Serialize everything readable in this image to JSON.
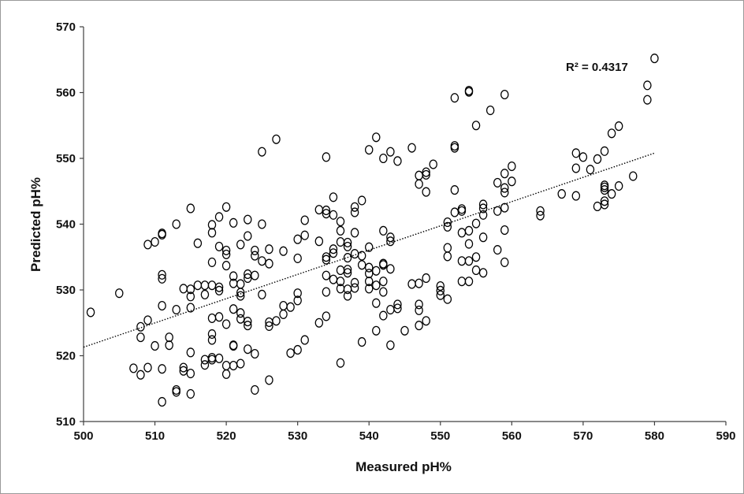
{
  "chart_data": {
    "type": "scatter",
    "title": "",
    "xlabel": "Measured pH%",
    "ylabel": "Predicted pH%",
    "xlim": [
      500,
      590
    ],
    "ylim": [
      510,
      570
    ],
    "xticks": [
      500,
      510,
      520,
      530,
      540,
      550,
      560,
      570,
      580,
      590
    ],
    "yticks": [
      510,
      520,
      530,
      540,
      550,
      560,
      570
    ],
    "grid": false,
    "legend": "none",
    "marker": "open-circle",
    "marker_color": "#000000",
    "trendline": {
      "type": "linear",
      "style": "dotted",
      "color": "#000000",
      "x": [
        500,
        580
      ],
      "y": [
        521.3,
        550.8
      ],
      "label": "R² = 0.4317"
    },
    "points": [
      [
        501,
        526.6
      ],
      [
        505,
        529.5
      ],
      [
        508,
        524.4
      ],
      [
        508,
        522.8
      ],
      [
        508,
        517.1
      ],
      [
        507,
        518.1
      ],
      [
        509,
        525.4
      ],
      [
        509,
        536.9
      ],
      [
        509,
        518.2
      ],
      [
        510,
        537.3
      ],
      [
        510,
        521.5
      ],
      [
        511,
        538.4
      ],
      [
        511,
        538.6
      ],
      [
        511,
        532.3
      ],
      [
        511,
        531.7
      ],
      [
        511,
        527.6
      ],
      [
        511,
        518.0
      ],
      [
        511,
        513.0
      ],
      [
        512,
        522.8
      ],
      [
        512,
        521.6
      ],
      [
        513,
        540.0
      ],
      [
        513,
        527.0
      ],
      [
        513,
        514.8
      ],
      [
        513,
        514.5
      ],
      [
        514,
        530.2
      ],
      [
        514,
        518.2
      ],
      [
        514,
        517.7
      ],
      [
        515,
        542.4
      ],
      [
        515,
        530.1
      ],
      [
        515,
        529.0
      ],
      [
        515,
        527.3
      ],
      [
        515,
        520.5
      ],
      [
        515,
        517.3
      ],
      [
        515,
        514.2
      ],
      [
        516,
        537.1
      ],
      [
        516,
        530.7
      ],
      [
        517,
        530.7
      ],
      [
        517,
        529.3
      ],
      [
        517,
        519.4
      ],
      [
        517,
        518.6
      ],
      [
        518,
        539.9
      ],
      [
        518,
        538.7
      ],
      [
        518,
        534.2
      ],
      [
        518,
        530.7
      ],
      [
        518,
        525.7
      ],
      [
        518,
        523.3
      ],
      [
        518,
        522.4
      ],
      [
        518,
        519.7
      ],
      [
        518,
        519.4
      ],
      [
        519,
        541.1
      ],
      [
        519,
        536.6
      ],
      [
        519,
        530.4
      ],
      [
        519,
        529.9
      ],
      [
        519,
        525.9
      ],
      [
        519,
        519.6
      ],
      [
        520,
        542.6
      ],
      [
        520,
        536.0
      ],
      [
        520,
        535.4
      ],
      [
        520,
        533.7
      ],
      [
        520,
        524.8
      ],
      [
        520,
        518.5
      ],
      [
        520,
        517.2
      ],
      [
        521,
        540.2
      ],
      [
        521,
        532.1
      ],
      [
        521,
        531.0
      ],
      [
        521,
        527.1
      ],
      [
        521,
        521.5
      ],
      [
        521,
        521.6
      ],
      [
        521,
        518.5
      ],
      [
        522,
        536.9
      ],
      [
        522,
        530.9
      ],
      [
        522,
        529.6
      ],
      [
        522,
        529.1
      ],
      [
        522,
        526.5
      ],
      [
        522,
        525.6
      ],
      [
        522,
        518.8
      ],
      [
        523,
        540.7
      ],
      [
        523,
        538.2
      ],
      [
        523,
        532.4
      ],
      [
        523,
        531.8
      ],
      [
        523,
        525.2
      ],
      [
        523,
        524.6
      ],
      [
        523,
        521.0
      ],
      [
        524,
        536.0
      ],
      [
        524,
        535.2
      ],
      [
        524,
        532.2
      ],
      [
        524,
        520.3
      ],
      [
        524,
        514.8
      ],
      [
        525,
        551.0
      ],
      [
        525,
        540.0
      ],
      [
        525,
        534.4
      ],
      [
        525,
        529.3
      ],
      [
        526,
        536.2
      ],
      [
        526,
        534.0
      ],
      [
        526,
        525.1
      ],
      [
        526,
        524.5
      ],
      [
        526,
        516.3
      ],
      [
        527,
        552.9
      ],
      [
        527,
        525.3
      ],
      [
        528,
        535.9
      ],
      [
        528,
        527.6
      ],
      [
        528,
        526.3
      ],
      [
        529,
        527.4
      ],
      [
        529,
        520.4
      ],
      [
        530,
        537.7
      ],
      [
        530,
        534.8
      ],
      [
        530,
        529.5
      ],
      [
        530,
        528.4
      ],
      [
        530,
        520.9
      ],
      [
        531,
        540.6
      ],
      [
        531,
        538.3
      ],
      [
        531,
        522.4
      ],
      [
        533,
        542.2
      ],
      [
        533,
        537.4
      ],
      [
        533,
        525.0
      ],
      [
        534,
        550.2
      ],
      [
        534,
        542.1
      ],
      [
        534,
        541.6
      ],
      [
        534,
        535.0
      ],
      [
        534,
        534.6
      ],
      [
        534,
        532.2
      ],
      [
        534,
        529.7
      ],
      [
        534,
        526.0
      ],
      [
        535,
        544.1
      ],
      [
        535,
        541.4
      ],
      [
        535,
        536.2
      ],
      [
        535,
        535.6
      ],
      [
        535,
        531.6
      ],
      [
        536,
        540.4
      ],
      [
        536,
        539.0
      ],
      [
        536,
        537.3
      ],
      [
        536,
        533.0
      ],
      [
        536,
        531.3
      ],
      [
        536,
        530.2
      ],
      [
        536,
        518.9
      ],
      [
        537,
        537.2
      ],
      [
        537,
        536.6
      ],
      [
        537,
        534.9
      ],
      [
        537,
        533.1
      ],
      [
        537,
        532.6
      ],
      [
        537,
        530.1
      ],
      [
        537,
        529.1
      ],
      [
        538,
        542.6
      ],
      [
        538,
        541.8
      ],
      [
        538,
        538.7
      ],
      [
        538,
        535.5
      ],
      [
        538,
        531.1
      ],
      [
        538,
        530.3
      ],
      [
        539,
        543.6
      ],
      [
        539,
        535.2
      ],
      [
        539,
        533.8
      ],
      [
        539,
        522.1
      ],
      [
        540,
        551.3
      ],
      [
        540,
        536.5
      ],
      [
        540,
        533.4
      ],
      [
        540,
        532.5
      ],
      [
        540,
        531.3
      ],
      [
        540,
        530.2
      ],
      [
        541,
        553.2
      ],
      [
        541,
        532.9
      ],
      [
        541,
        530.7
      ],
      [
        541,
        528.0
      ],
      [
        541,
        523.8
      ],
      [
        542,
        550.0
      ],
      [
        542,
        539.0
      ],
      [
        542,
        534.0
      ],
      [
        542,
        533.8
      ],
      [
        542,
        531.3
      ],
      [
        542,
        529.7
      ],
      [
        542,
        526.1
      ],
      [
        543,
        551.0
      ],
      [
        543,
        538.0
      ],
      [
        543,
        537.4
      ],
      [
        543,
        533.2
      ],
      [
        543,
        527.0
      ],
      [
        543,
        521.6
      ],
      [
        544,
        549.6
      ],
      [
        544,
        527.8
      ],
      [
        544,
        527.2
      ],
      [
        545,
        523.8
      ],
      [
        546,
        551.6
      ],
      [
        546,
        530.9
      ],
      [
        547,
        547.4
      ],
      [
        547,
        546.1
      ],
      [
        547,
        531.0
      ],
      [
        547,
        527.8
      ],
      [
        547,
        526.9
      ],
      [
        547,
        524.6
      ],
      [
        548,
        547.9
      ],
      [
        548,
        547.5
      ],
      [
        548,
        544.9
      ],
      [
        548,
        531.8
      ],
      [
        548,
        525.3
      ],
      [
        549,
        549.1
      ],
      [
        550,
        530.6
      ],
      [
        550,
        529.9
      ],
      [
        550,
        529.2
      ],
      [
        551,
        540.3
      ],
      [
        551,
        539.6
      ],
      [
        551,
        536.4
      ],
      [
        551,
        535.1
      ],
      [
        551,
        528.6
      ],
      [
        552,
        559.2
      ],
      [
        552,
        551.9
      ],
      [
        552,
        551.6
      ],
      [
        552,
        545.2
      ],
      [
        552,
        541.8
      ],
      [
        553,
        542.3
      ],
      [
        553,
        542.0
      ],
      [
        553,
        538.7
      ],
      [
        553,
        534.4
      ],
      [
        553,
        531.3
      ],
      [
        554,
        560.3
      ],
      [
        554,
        560.1
      ],
      [
        554,
        539.0
      ],
      [
        554,
        537.0
      ],
      [
        554,
        534.4
      ],
      [
        554,
        531.3
      ],
      [
        555,
        555.0
      ],
      [
        555,
        540.1
      ],
      [
        555,
        535.0
      ],
      [
        555,
        533.0
      ],
      [
        556,
        543.0
      ],
      [
        556,
        542.4
      ],
      [
        556,
        541.4
      ],
      [
        556,
        538.0
      ],
      [
        556,
        532.6
      ],
      [
        557,
        557.3
      ],
      [
        558,
        546.3
      ],
      [
        558,
        542.0
      ],
      [
        558,
        536.1
      ],
      [
        559,
        559.7
      ],
      [
        559,
        547.7
      ],
      [
        559,
        545.5
      ],
      [
        559,
        544.8
      ],
      [
        559,
        542.5
      ],
      [
        559,
        539.1
      ],
      [
        559,
        534.2
      ],
      [
        560,
        548.8
      ],
      [
        560,
        546.5
      ],
      [
        564,
        542.0
      ],
      [
        564,
        541.3
      ],
      [
        567,
        544.6
      ],
      [
        569,
        550.8
      ],
      [
        569,
        548.5
      ],
      [
        569,
        544.3
      ],
      [
        570,
        550.2
      ],
      [
        571,
        548.3
      ],
      [
        572,
        549.9
      ],
      [
        572,
        542.7
      ],
      [
        573,
        551.1
      ],
      [
        573,
        545.9
      ],
      [
        573,
        545.6
      ],
      [
        573,
        545.2
      ],
      [
        573,
        543.5
      ],
      [
        573,
        543.0
      ],
      [
        574,
        553.8
      ],
      [
        574,
        544.6
      ],
      [
        575,
        554.9
      ],
      [
        575,
        545.8
      ],
      [
        577,
        547.3
      ],
      [
        579,
        561.1
      ],
      [
        579,
        558.9
      ],
      [
        580,
        565.2
      ]
    ]
  }
}
